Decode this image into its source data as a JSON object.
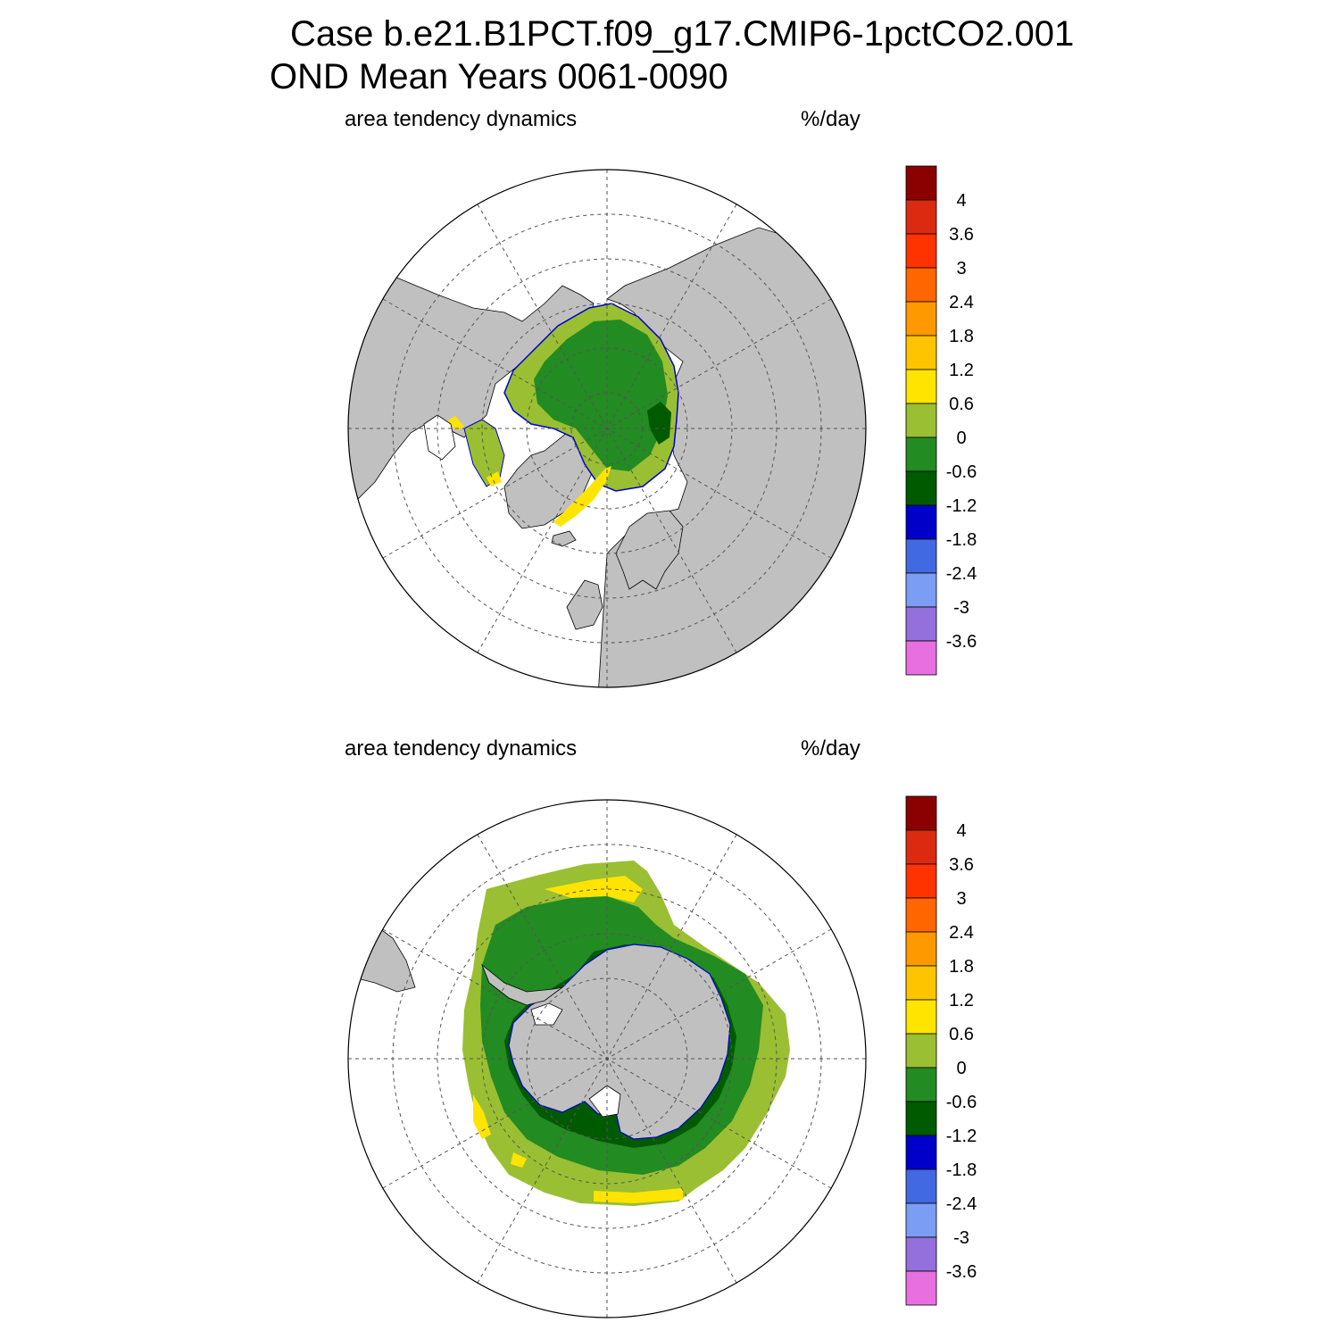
{
  "figure": {
    "title_line1": "Case b.e21.B1PCT.f09_g17.CMIP6-1pctCO2.001",
    "title_line2": "OND Mean   Years 0061-0090"
  },
  "panels": [
    {
      "id": "north",
      "hemisphere": "NH",
      "left_label": "area tendency dynamics",
      "right_label": "%/day"
    },
    {
      "id": "south",
      "hemisphere": "SH",
      "left_label": "area tendency dynamics",
      "right_label": "%/day"
    }
  ],
  "colorbar": {
    "tick_labels": [
      "4",
      "3.6",
      "3",
      "2.4",
      "1.8",
      "1.2",
      "0.6",
      "0",
      "-0.6",
      "-1.2",
      "-1.8",
      "-2.4",
      "-3",
      "-3.6"
    ],
    "colors": [
      "#8b0000",
      "#dc2a10",
      "#ff3300",
      "#ff6600",
      "#ff9900",
      "#ffc400",
      "#ffe400",
      "#9abf32",
      "#228b22",
      "#005a00",
      "#0000c8",
      "#4169e1",
      "#7b9df4",
      "#9370db",
      "#e86fe0"
    ]
  },
  "chart_data": {
    "type": "heatmap",
    "variable": "area tendency dynamics",
    "units": "%/day",
    "projection": "polar stereographic",
    "levels": [
      -3.6,
      -3,
      -2.4,
      -1.8,
      -1.2,
      -0.6,
      0,
      0.6,
      1.2,
      1.8,
      2.4,
      3,
      3.6,
      4
    ],
    "land_color": "#c0c0c0",
    "ocean_color": "#ffffff"
  }
}
